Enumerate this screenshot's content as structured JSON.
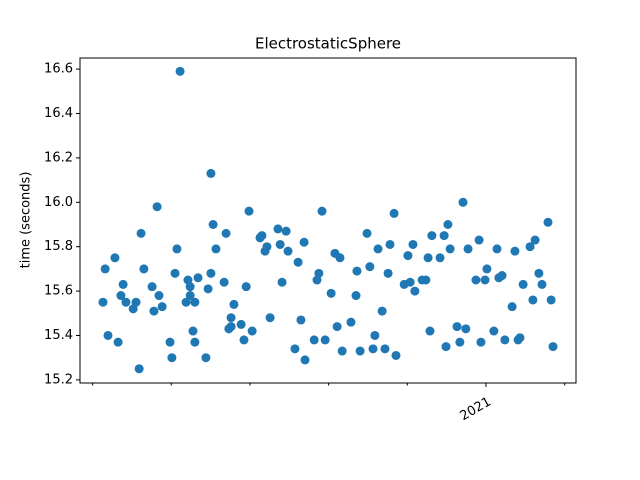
{
  "chart_data": {
    "type": "scatter",
    "title": "ElectrostaticSphere",
    "ylabel": "time (seconds)",
    "color": "#1f77b4",
    "xlim": [
      2019.71,
      2021.286
    ],
    "xticks": [
      {
        "value": 2021,
        "label": "2021"
      }
    ],
    "xminorticks": [
      2019.75,
      2020,
      2020.25,
      2020.5,
      2020.75,
      2021.25
    ],
    "ylim": [
      15.186,
      16.65
    ],
    "yticks": [
      15.2,
      15.4,
      15.6,
      15.8,
      {
        "value": 16,
        "label": "16.0"
      },
      16.2,
      16.4,
      16.6
    ],
    "x": [
      2019.783,
      2019.79,
      2019.799,
      2019.821,
      2019.831,
      2019.84,
      2019.847,
      2019.856,
      2019.879,
      2019.888,
      2019.898,
      2019.904,
      2019.913,
      2019.939,
      2019.945,
      2019.955,
      2019.961,
      2019.971,
      2019.996,
      2020.002,
      2020.012,
      2020.018,
      2020.028,
      2020.047,
      2020.053,
      2020.06,
      2020.06,
      2020.069,
      2020.075,
      2020.075,
      2020.085,
      2020.11,
      2020.117,
      2020.126,
      2020.126,
      2020.133,
      2020.142,
      2020.168,
      2020.174,
      2020.183,
      2020.19,
      2020.19,
      2020.199,
      2020.222,
      2020.231,
      2020.238,
      2020.247,
      2020.257,
      2020.282,
      2020.288,
      2020.298,
      2020.304,
      2020.314,
      2020.339,
      2020.346,
      2020.352,
      2020.365,
      2020.371,
      2020.393,
      2020.403,
      2020.412,
      2020.425,
      2020.422,
      2020.454,
      2020.463,
      2020.469,
      2020.479,
      2020.489,
      2020.508,
      2020.52,
      2020.527,
      2020.536,
      2020.543,
      2020.571,
      2020.587,
      2020.59,
      2020.6,
      2020.622,
      2020.631,
      2020.641,
      2020.647,
      2020.657,
      2020.67,
      2020.679,
      2020.689,
      2020.695,
      2020.708,
      2020.714,
      2020.74,
      2020.752,
      2020.759,
      2020.768,
      2020.774,
      2020.797,
      2020.809,
      2020.816,
      2020.822,
      2020.828,
      2020.854,
      2020.867,
      2020.873,
      2020.879,
      2020.886,
      2020.908,
      2020.917,
      2020.927,
      2020.936,
      2020.943,
      2020.968,
      2020.978,
      2020.984,
      2020.997,
      2021.003,
      2021.025,
      2021.035,
      2021.041,
      2021.051,
      2021.06,
      2021.083,
      2021.092,
      2021.102,
      2021.108,
      2021.118,
      2021.14,
      2021.149,
      2021.156,
      2021.168,
      2021.178,
      2021.197,
      2021.207,
      2021.213
    ],
    "values": [
      15.55,
      15.7,
      15.4,
      15.75,
      15.37,
      15.58,
      15.63,
      15.55,
      15.52,
      15.55,
      15.25,
      15.86,
      15.7,
      15.62,
      15.51,
      15.98,
      15.58,
      15.53,
      15.37,
      15.3,
      15.68,
      15.79,
      16.59,
      15.55,
      15.65,
      15.62,
      15.58,
      15.42,
      15.37,
      15.55,
      15.66,
      15.3,
      15.61,
      15.68,
      16.13,
      15.9,
      15.79,
      15.64,
      15.86,
      15.43,
      15.48,
      15.44,
      15.54,
      15.45,
      15.38,
      15.62,
      15.96,
      15.42,
      15.84,
      15.85,
      15.78,
      15.8,
      15.48,
      15.88,
      15.81,
      15.64,
      15.87,
      15.78,
      15.34,
      15.73,
      15.47,
      15.29,
      15.82,
      15.38,
      15.65,
      15.68,
      15.96,
      15.38,
      15.59,
      15.77,
      15.44,
      15.75,
      15.33,
      15.46,
      15.58,
      15.69,
      15.33,
      15.86,
      15.71,
      15.34,
      15.4,
      15.79,
      15.51,
      15.34,
      15.68,
      15.81,
      15.95,
      15.31,
      15.63,
      15.76,
      15.64,
      15.81,
      15.6,
      15.65,
      15.65,
      15.75,
      15.42,
      15.85,
      15.75,
      15.85,
      15.35,
      15.9,
      15.79,
      15.44,
      15.37,
      16.0,
      15.43,
      15.79,
      15.65,
      15.83,
      15.37,
      15.65,
      15.7,
      15.42,
      15.79,
      15.66,
      15.67,
      15.38,
      15.53,
      15.78,
      15.38,
      15.39,
      15.63,
      15.8,
      15.56,
      15.83,
      15.68,
      15.63,
      15.91,
      15.56,
      15.35
    ]
  }
}
